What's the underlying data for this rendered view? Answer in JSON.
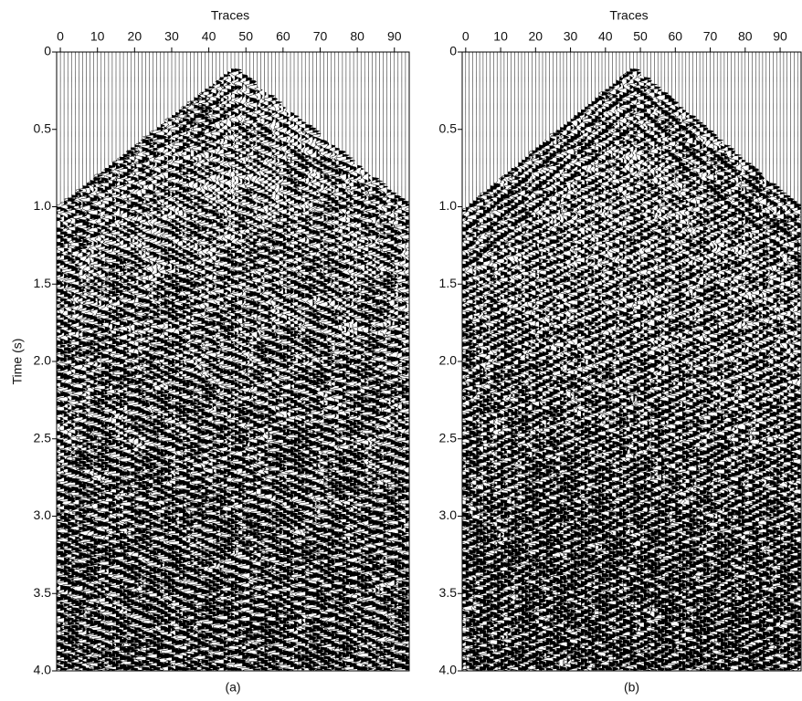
{
  "chart_data": [
    {
      "type": "wiggle",
      "xlabel": "Traces",
      "ylabel": "Time (s)",
      "caption": "(a)",
      "xlim": [
        -1,
        94
      ],
      "xticks": [
        0,
        10,
        20,
        30,
        40,
        50,
        60,
        70,
        80,
        90
      ],
      "ylim": [
        0,
        4
      ],
      "yticks": [
        0,
        0.5,
        {
          "value": 1,
          "label": "1.0"
        },
        1.5,
        {
          "value": 2,
          "label": "2.0"
        },
        2.5,
        {
          "value": 3,
          "label": "3.0"
        },
        3.5,
        {
          "value": 4,
          "label": "4.0"
        }
      ]
    },
    {
      "type": "wiggle",
      "xlabel": "Traces",
      "caption": "(b)",
      "xlim": [
        -1,
        96
      ],
      "xticks": [
        0,
        10,
        20,
        30,
        40,
        50,
        60,
        70,
        80,
        90
      ],
      "ylim": [
        0,
        4
      ],
      "yticks": [
        0,
        0.5,
        {
          "value": 1,
          "label": "1.0"
        },
        1.5,
        {
          "value": 2,
          "label": "2.0"
        },
        2.5,
        {
          "value": 3,
          "label": "3.0"
        },
        3.5,
        {
          "value": 4,
          "label": "4.0"
        }
      ]
    }
  ]
}
